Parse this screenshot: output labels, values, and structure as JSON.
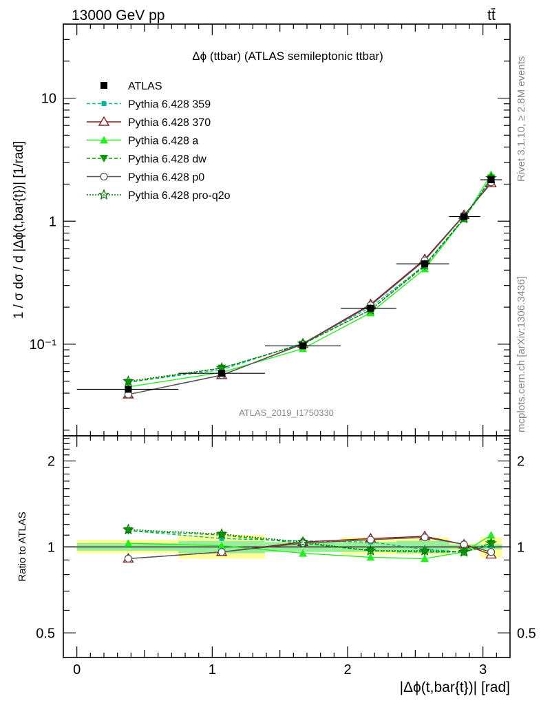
{
  "header": {
    "left": "13000 GeV pp",
    "right": "tt̄"
  },
  "side": {
    "rivet": "Rivet 3.1.10, ≥ 2.8M events",
    "mcplots": "mcplots.cern.ch [arXiv:1306.3436]"
  },
  "chart_data": [
    {
      "type": "line",
      "title": "Δϕ (ttbar) (ATLAS semileptonic ttbar)",
      "ylabel": "1 / σ dσ / d |Δϕ(t,bar{t})| [1/rad]",
      "xlabel": "",
      "yscale": "log",
      "xlim": [
        -0.1,
        3.2
      ],
      "ylim": [
        0.018,
        40
      ],
      "y_ticks": [
        0.1,
        1,
        10
      ],
      "y_tick_labels": [
        "10⁻¹",
        "1",
        "10"
      ],
      "watermark": "ATLAS_2019_I1750330",
      "legend_position": "top-left",
      "x": [
        0.38,
        1.07,
        1.67,
        2.17,
        2.57,
        2.86,
        3.06
      ],
      "data_bins": [
        [
          0,
          0.75
        ],
        [
          0.75,
          1.39
        ],
        [
          1.39,
          1.95
        ],
        [
          1.95,
          2.36
        ],
        [
          2.36,
          2.75
        ],
        [
          2.75,
          2.98
        ],
        [
          2.98,
          3.14
        ]
      ],
      "series": [
        {
          "name": "ATLAS",
          "color": "#000000",
          "marker": "square",
          "line": "none",
          "values": [
            0.043,
            0.058,
            0.097,
            0.196,
            0.45,
            1.09,
            2.17
          ]
        },
        {
          "name": "Pythia 6.428 359",
          "color": "#00b894",
          "marker": "square-small",
          "line": "dashed",
          "values": [
            0.049,
            0.062,
            0.102,
            0.199,
            0.44,
            1.06,
            2.13
          ]
        },
        {
          "name": "Pythia 6.428 370",
          "color": "#8b1a1a",
          "marker": "triangle-open",
          "line": "solid",
          "values": [
            0.039,
            0.056,
            0.101,
            0.211,
            0.49,
            1.12,
            2.03
          ]
        },
        {
          "name": "Pythia 6.428 a",
          "color": "#22ee22",
          "marker": "triangle",
          "line": "solid",
          "values": [
            0.045,
            0.059,
            0.092,
            0.18,
            0.41,
            1.05,
            2.4
          ]
        },
        {
          "name": "Pythia 6.428 dw",
          "color": "#0a9a0a",
          "marker": "triangle-down",
          "line": "dashed",
          "values": [
            0.049,
            0.064,
            0.1,
            0.19,
            0.43,
            1.05,
            2.24
          ]
        },
        {
          "name": "Pythia 6.428 p0",
          "color": "#555555",
          "marker": "circle-open",
          "line": "solid",
          "values": [
            0.039,
            0.056,
            0.1,
            0.207,
            0.48,
            1.11,
            2.07
          ]
        },
        {
          "name": "Pythia 6.428 pro-q2o",
          "color": "#087808",
          "marker": "star",
          "line": "dotted",
          "values": [
            0.05,
            0.064,
            0.101,
            0.19,
            0.44,
            1.05,
            2.24
          ]
        }
      ]
    },
    {
      "type": "line",
      "title": "",
      "ylabel": "Ratio to ATLAS",
      "xlabel": "|Δϕ(t,bar{t})| [rad]",
      "yscale": "log",
      "xlim": [
        -0.1,
        3.2
      ],
      "ylim": [
        0.41,
        2.45
      ],
      "x_ticks": [
        0,
        1,
        2,
        3
      ],
      "y_ticks": [
        0.5,
        1,
        2
      ],
      "x": [
        0.38,
        1.07,
        1.67,
        2.17,
        2.57,
        2.86,
        3.06
      ],
      "band_inner": [
        [
          0.97,
          1.03
        ],
        [
          0.95,
          1.05
        ],
        [
          0.96,
          1.04
        ],
        [
          0.96,
          1.04
        ],
        [
          0.95,
          1.05
        ],
        [
          0.98,
          1.02
        ],
        [
          0.98,
          1.02
        ]
      ],
      "band_outer": [
        [
          0.95,
          1.06
        ],
        [
          0.91,
          1.1
        ],
        [
          0.96,
          1.04
        ],
        [
          0.94,
          1.08
        ],
        [
          0.94,
          1.08
        ],
        [
          0.97,
          1.03
        ],
        [
          0.92,
          1.08
        ]
      ],
      "series": [
        {
          "name": "Pythia 6.428 359",
          "color": "#00b894",
          "marker": "square-small",
          "line": "dashed",
          "values": [
            1.14,
            1.07,
            1.05,
            1.04,
            0.98,
            0.96,
            1.01
          ]
        },
        {
          "name": "Pythia 6.428 370",
          "color": "#8b1a1a",
          "marker": "triangle-open",
          "line": "solid",
          "values": [
            0.91,
            0.96,
            1.04,
            1.07,
            1.09,
            1.02,
            0.94
          ]
        },
        {
          "name": "Pythia 6.428 a",
          "color": "#22ee22",
          "marker": "triangle",
          "line": "solid",
          "values": [
            1.03,
            1.01,
            0.95,
            0.92,
            0.91,
            0.96,
            1.1
          ]
        },
        {
          "name": "Pythia 6.428 dw",
          "color": "#0a9a0a",
          "marker": "triangle-down",
          "line": "dashed",
          "values": [
            1.14,
            1.1,
            1.03,
            0.97,
            0.96,
            0.96,
            1.03
          ]
        },
        {
          "name": "Pythia 6.428 p0",
          "color": "#555555",
          "marker": "circle-open",
          "line": "solid",
          "values": [
            0.91,
            0.96,
            1.03,
            1.06,
            1.08,
            1.02,
            0.96
          ]
        },
        {
          "name": "Pythia 6.428 pro-q2o",
          "color": "#087808",
          "marker": "star",
          "line": "dotted",
          "values": [
            1.15,
            1.11,
            1.04,
            0.97,
            0.97,
            0.96,
            1.03
          ]
        }
      ]
    }
  ]
}
